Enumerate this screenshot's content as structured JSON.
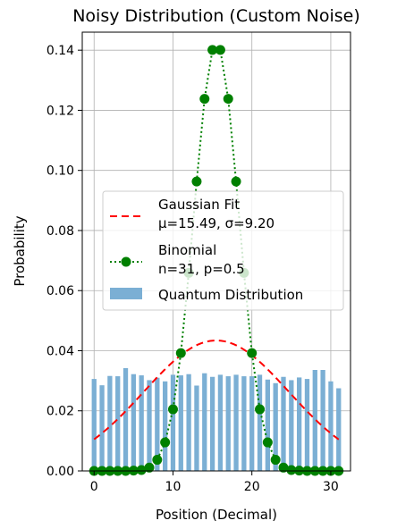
{
  "chart_data": {
    "type": "bar",
    "title": "Noisy Distribution (Custom Noise)",
    "xlabel": "Position (Decimal)",
    "ylabel": "Probability",
    "xlim": [
      -1.5,
      32.5
    ],
    "ylim": [
      0,
      0.146
    ],
    "x_ticks": [
      0,
      10,
      20,
      30
    ],
    "y_ticks": [
      0.0,
      0.02,
      0.04,
      0.06,
      0.08,
      0.1,
      0.12,
      0.14
    ],
    "y_tick_labels": [
      "0.00",
      "0.02",
      "0.04",
      "0.06",
      "0.08",
      "0.10",
      "0.12",
      "0.14"
    ],
    "grid": true,
    "legend_position": "center-left",
    "x": [
      0,
      1,
      2,
      3,
      4,
      5,
      6,
      7,
      8,
      9,
      10,
      11,
      12,
      13,
      14,
      15,
      16,
      17,
      18,
      19,
      20,
      21,
      22,
      23,
      24,
      25,
      26,
      27,
      28,
      29,
      30,
      31
    ],
    "series": [
      {
        "name": "Quantum Distribution",
        "kind": "bar",
        "color": "#7bafd4",
        "values": [
          0.0306,
          0.0285,
          0.0316,
          0.0315,
          0.0342,
          0.0322,
          0.0318,
          0.0302,
          0.031,
          0.0298,
          0.032,
          0.0318,
          0.0322,
          0.0284,
          0.0325,
          0.0313,
          0.032,
          0.0315,
          0.032,
          0.0315,
          0.0315,
          0.032,
          0.0304,
          0.0292,
          0.0313,
          0.0302,
          0.0311,
          0.0306,
          0.0336,
          0.0336,
          0.0298,
          0.0275
        ]
      },
      {
        "name": "Gaussian Fit",
        "label_line2": "μ=15.49, σ=9.20",
        "kind": "line",
        "style": "dashed",
        "color": "#ff0000",
        "mu": 15.49,
        "sigma": 9.2,
        "peak": 0.0434,
        "x_range": [
          0,
          31
        ]
      },
      {
        "name": "Binomial",
        "label_line2": "n=31, p=0.5",
        "kind": "line-markers",
        "style": "dotted",
        "color": "#008000",
        "values": [
          0.0,
          0.0,
          0.0,
          0.0,
          0.0,
          0.0001,
          0.0003,
          0.0011,
          0.0037,
          0.0095,
          0.0205,
          0.0392,
          0.0659,
          0.0963,
          0.1238,
          0.1401,
          0.1401,
          0.1238,
          0.0963,
          0.0659,
          0.0392,
          0.0205,
          0.0095,
          0.0037,
          0.0011,
          0.0003,
          0.0001,
          0.0,
          0.0,
          0.0,
          0.0,
          0.0
        ]
      }
    ]
  }
}
